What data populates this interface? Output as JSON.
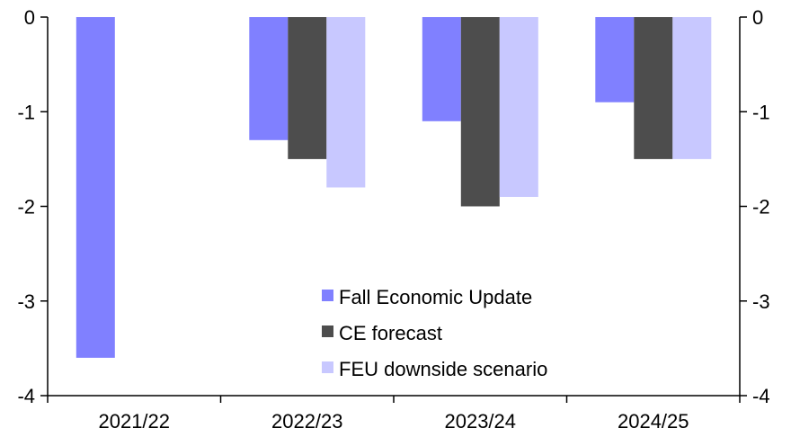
{
  "chart_data": {
    "type": "bar",
    "categories": [
      "2021/22",
      "2022/23",
      "2023/24",
      "2024/25"
    ],
    "series": [
      {
        "name": "Fall Economic Update",
        "values": [
          -3.6,
          -1.3,
          -1.1,
          -0.9
        ],
        "color": "#8080ff"
      },
      {
        "name": "CE forecast",
        "values": [
          null,
          -1.5,
          -2.0,
          -1.5
        ],
        "color": "#4d4d4d"
      },
      {
        "name": "FEU downside scenario",
        "values": [
          null,
          -1.8,
          -1.9,
          -1.5
        ],
        "color": "#c8c8ff"
      }
    ],
    "ylim": [
      -4,
      0
    ],
    "yticks": [
      0,
      -1,
      -2,
      -3,
      -4
    ],
    "ytick_labels": [
      "0",
      "-1",
      "-2",
      "-3",
      "-4"
    ],
    "axes": "left-and-right",
    "grid": false,
    "legend_position": "bottom-center"
  }
}
